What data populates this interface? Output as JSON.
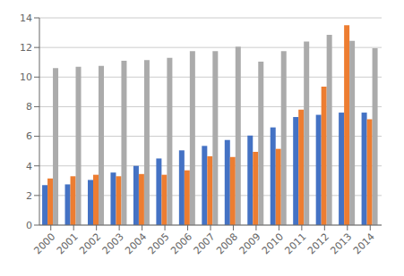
{
  "chart_data": {
    "type": "bar",
    "categories": [
      "2000",
      "2001",
      "2002",
      "2003",
      "2004",
      "2005",
      "2006",
      "2007",
      "2008",
      "2009",
      "2010",
      "2011",
      "2012",
      "2013",
      "2014"
    ],
    "series": [
      {
        "color": "#4472C4",
        "values": [
          2.7,
          2.75,
          3.05,
          3.55,
          4.0,
          4.5,
          5.05,
          5.35,
          5.75,
          6.05,
          6.6,
          7.3,
          7.45,
          7.6,
          7.6
        ]
      },
      {
        "color": "#ED7D31",
        "values": [
          3.15,
          3.3,
          3.4,
          3.3,
          3.45,
          3.4,
          3.7,
          4.65,
          4.6,
          4.95,
          5.15,
          7.8,
          9.35,
          13.5,
          7.15
        ]
      },
      {
        "color": "#ABABAB",
        "values": [
          10.6,
          10.7,
          10.75,
          11.1,
          11.15,
          11.3,
          11.75,
          11.75,
          12.05,
          11.05,
          11.75,
          12.4,
          12.85,
          12.45,
          11.95
        ]
      }
    ],
    "ylim": [
      0,
      14
    ],
    "yticks": [
      0,
      2,
      4,
      6,
      8,
      10,
      12,
      14
    ],
    "grid": true
  }
}
